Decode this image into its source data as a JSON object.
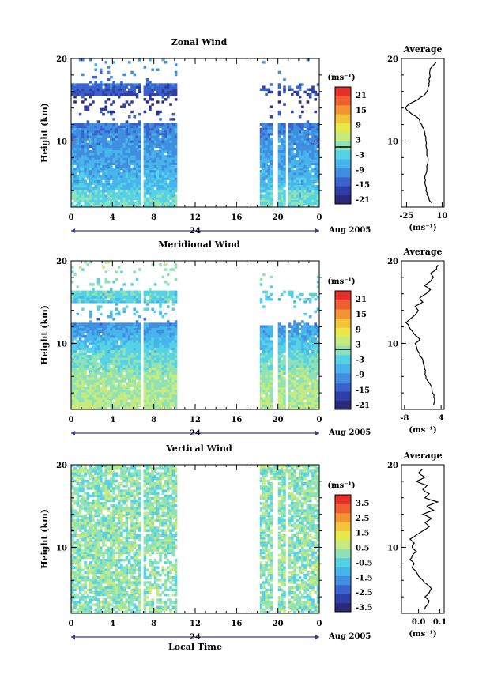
{
  "chart_data": [
    {
      "type": "heatmap",
      "title": "Zonal Wind",
      "ylabel": "Height (km)",
      "ylim": [
        2,
        20
      ],
      "y_ticks": [
        "20",
        "10"
      ],
      "x_ticks": [
        "0",
        "4",
        "8",
        "12",
        "16",
        "20",
        "0"
      ],
      "x_day_label": "24",
      "x_date_label": "Aug 2005",
      "colorbar": {
        "unit": "(ms⁻¹)",
        "ticks": [
          "21",
          "15",
          "9",
          "3",
          "-3",
          "-9",
          "-15",
          "-21"
        ],
        "range": [
          -24,
          24
        ],
        "colors": [
          "#2a2a7a",
          "#2e3fa5",
          "#3a62cc",
          "#3f8ee0",
          "#47b4ec",
          "#55d2e6",
          "#8fe2b6",
          "#c4ea80",
          "#e8e84a",
          "#f4c43a",
          "#f29434",
          "#ee6030",
          "#e43028"
        ]
      },
      "profile": {
        "title": "Average",
        "xlabel": "(ms⁻¹)",
        "x_ticks": [
          "-25",
          "10"
        ],
        "xlim": [
          -30,
          12
        ],
        "y_ticks": [
          "20",
          "10"
        ],
        "heights": [
          2.5,
          3,
          3.5,
          4,
          4.5,
          5,
          5.5,
          6,
          6.5,
          7,
          7.5,
          8,
          8.5,
          9,
          9.5,
          10,
          10.5,
          11,
          11.5,
          12,
          12.5,
          13,
          13.5,
          14,
          14.5,
          15,
          15.5,
          16,
          16.5,
          17,
          17.5,
          18,
          18.5,
          19,
          19.5
        ],
        "values": [
          0,
          -3,
          -5,
          -6,
          -6,
          -7,
          -7,
          -6,
          -5,
          -5,
          -4,
          -4,
          -5,
          -5,
          -6,
          -6,
          -6,
          -7,
          -8,
          -10,
          -12,
          -16,
          -22,
          -26,
          -22,
          -14,
          -8,
          -5,
          -4,
          -3,
          -3,
          -2,
          -2,
          0,
          4
        ]
      }
    },
    {
      "type": "heatmap",
      "title": "Meridional Wind",
      "ylabel": "Height (km)",
      "ylim": [
        2,
        20
      ],
      "y_ticks": [
        "20",
        "10"
      ],
      "x_ticks": [
        "0",
        "4",
        "8",
        "12",
        "16",
        "20",
        "0"
      ],
      "x_day_label": "24",
      "x_date_label": "Aug 2005",
      "colorbar": {
        "unit": "(ms⁻¹)",
        "ticks": [
          "21",
          "15",
          "9",
          "3",
          "-3",
          "-9",
          "-15",
          "-21"
        ],
        "range": [
          -24,
          24
        ],
        "colors": [
          "#2a2a7a",
          "#2e3fa5",
          "#3a62cc",
          "#3f8ee0",
          "#47b4ec",
          "#55d2e6",
          "#8fe2b6",
          "#c4ea80",
          "#e8e84a",
          "#f4c43a",
          "#f29434",
          "#ee6030",
          "#e43028"
        ]
      },
      "profile": {
        "title": "Average",
        "xlabel": "(ms⁻¹)",
        "x_ticks": [
          "-8",
          "4"
        ],
        "xlim": [
          -9,
          5
        ],
        "y_ticks": [
          "20",
          "10"
        ],
        "heights": [
          2.5,
          3,
          3.5,
          4,
          4.5,
          5,
          5.5,
          6,
          6.5,
          7,
          7.5,
          8,
          8.5,
          9,
          9.5,
          10,
          10.5,
          11,
          11.5,
          12,
          12.5,
          13,
          13.5,
          14,
          14.5,
          15,
          15.5,
          16,
          16.5,
          17,
          17.5,
          18,
          18.5,
          19,
          19.5
        ],
        "values": [
          1.5,
          1.8,
          1.6,
          1.2,
          1.0,
          0.5,
          -0.5,
          -1.0,
          -1.2,
          -1.5,
          -1.8,
          -2.0,
          -3.0,
          -3.5,
          -4.0,
          -4.5,
          -3.0,
          -4.5,
          -5.5,
          -6.5,
          -7.5,
          -6.0,
          -4.5,
          -3.5,
          -4.5,
          -2.0,
          -3.0,
          -1.0,
          0.5,
          -1.5,
          0.5,
          1.5,
          0.5,
          2.5,
          3.0
        ]
      }
    },
    {
      "type": "heatmap",
      "title": "Vertical Wind",
      "ylabel": "Height (km)",
      "xlabel": "Local Time",
      "ylim": [
        2,
        20
      ],
      "y_ticks": [
        "20",
        "10"
      ],
      "x_ticks": [
        "0",
        "4",
        "8",
        "12",
        "16",
        "20",
        "0"
      ],
      "x_day_label": "24",
      "x_date_label": "Aug 2005",
      "colorbar": {
        "unit": "(ms⁻¹)",
        "ticks": [
          "3.5",
          "2.5",
          "1.5",
          "0.5",
          "-0.5",
          "-1.5",
          "-2.5",
          "-3.5"
        ],
        "range": [
          -4,
          4
        ],
        "colors": [
          "#2a2a7a",
          "#2e3fa5",
          "#3a62cc",
          "#3f8ee0",
          "#47b4ec",
          "#55d2e6",
          "#8fe2b6",
          "#c4ea80",
          "#e8e84a",
          "#f4c43a",
          "#f29434",
          "#ee6030",
          "#e43028"
        ]
      },
      "profile": {
        "title": "Average",
        "xlabel": "(ms⁻¹)",
        "x_ticks": [
          "0.0",
          "0.1"
        ],
        "xlim": [
          -0.08,
          0.12
        ],
        "y_ticks": [
          "20",
          "10"
        ],
        "heights": [
          2.5,
          3,
          3.5,
          4,
          4.5,
          5,
          5.5,
          6,
          6.5,
          7,
          7.5,
          8,
          8.5,
          9,
          9.5,
          10,
          10.5,
          11,
          11.5,
          12,
          12.5,
          13,
          13.5,
          14,
          14.5,
          15,
          15.5,
          16,
          16.5,
          17,
          17.5,
          18,
          18.5,
          19,
          19.5
        ],
        "values": [
          0.03,
          0.04,
          0.05,
          0.03,
          0.05,
          0.06,
          0.04,
          0.02,
          0.0,
          -0.01,
          -0.03,
          -0.02,
          -0.04,
          -0.03,
          -0.01,
          -0.03,
          -0.02,
          -0.04,
          -0.01,
          0.02,
          0.05,
          0.03,
          0.06,
          0.02,
          0.07,
          0.04,
          0.09,
          0.03,
          0.05,
          0.02,
          0.04,
          -0.01,
          0.03,
          0.0,
          0.02
        ]
      }
    }
  ]
}
